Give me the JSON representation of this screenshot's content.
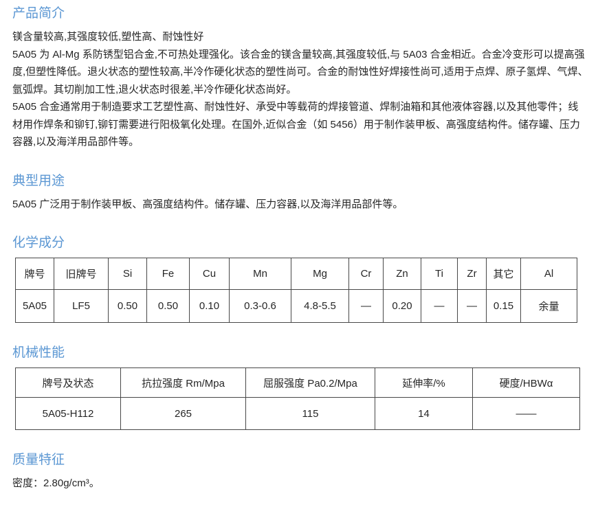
{
  "page": {
    "accent_color": "#5b97d3",
    "text_color": "#262626",
    "table_border_color": "#474747"
  },
  "sections": {
    "intro": {
      "title": "产品简介",
      "subtitle": "镁含量较高,其强度较低,塑性高、耐蚀性好",
      "para1": "5A05 为 Al-Mg 系防锈型铝合金,不可热处理强化。该合金的镁含量较高,其强度较低,与 5A03 合金相近。合金冷变形可以提高强度,但塑性降低。退火状态的塑性较高,半冷作硬化状态的塑性尚可。合金的耐蚀性好焊接性尚可,适用于点焊、原子氢焊、气焊、氩弧焊。其切削加工性,退火状态时很差,半冷作硬化状态尚好。",
      "para2": "5A05 合金通常用于制造要求工艺塑性高、耐蚀性好、承受中等载荷的焊接管道、焊制油箱和其他液体容器,以及其他零件；线材用作焊条和铆钉,铆钉需要进行阳极氧化处理。在国外,近似合金（如 5456）用于制作装甲板、高强度结构件。储存罐、压力容器,以及海洋用品部件等。"
    },
    "uses": {
      "title": "典型用途",
      "body": "5A05 广泛用于制作装甲板、高强度结构件。储存罐、压力容器,以及海洋用品部件等。"
    },
    "chemistry": {
      "title": "化学成分",
      "table": {
        "headers": [
          "牌号",
          "旧牌号",
          "Si",
          "Fe",
          "Cu",
          "Mn",
          "Mg",
          "Cr",
          "Zn",
          "Ti",
          "Zr",
          "其它",
          "Al"
        ],
        "rows": [
          [
            "5A05",
            "LF5",
            "0.50",
            "0.50",
            "0.10",
            "0.3-0.6",
            "4.8-5.5",
            "—",
            "0.20",
            "—",
            "—",
            "0.15",
            "余量"
          ]
        ]
      }
    },
    "mechanical": {
      "title": "机械性能",
      "table": {
        "headers": [
          "牌号及状态",
          "抗拉强度 Rm/Mpa",
          "屈服强度 Pa0.2/Mpa",
          "延伸率/%",
          "硬度/HBWα"
        ],
        "rows": [
          [
            "5A05-H112",
            "265",
            "115",
            "14",
            "——"
          ]
        ]
      }
    },
    "quality": {
      "title": "质量特征",
      "body": "密度：2.80g/cm³。"
    }
  }
}
